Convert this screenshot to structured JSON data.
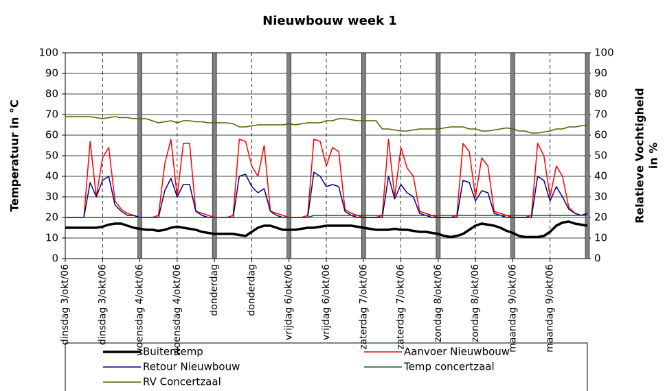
{
  "chart_data": {
    "type": "line",
    "title": "Nieuwbouw week 1",
    "ylabel": "Temperatuur in °C",
    "y2label": [
      "Relatieve Vochtigheid",
      "in %"
    ],
    "xlim": [
      0,
      168
    ],
    "ylim": [
      0,
      100
    ],
    "y2lim": [
      0,
      100
    ],
    "yticks": [
      0,
      10,
      20,
      30,
      40,
      50,
      60,
      70,
      80,
      90,
      100
    ],
    "y2ticks": [
      0,
      10,
      20,
      30,
      40,
      50,
      60,
      70,
      80,
      90,
      100
    ],
    "xticks": [
      {
        "value": 0,
        "label": "dinsdag 3/okt/06"
      },
      {
        "value": 12,
        "label": "dinsdag 3/okt/06"
      },
      {
        "value": 24,
        "label": "woensdag 4/okt/06"
      },
      {
        "value": 36,
        "label": "woensdag 4/okt/06"
      },
      {
        "value": 48,
        "label": "donderdag"
      },
      {
        "value": 60,
        "label": "donderdag"
      },
      {
        "value": 72,
        "label": "vrijdag 6/okt/06"
      },
      {
        "value": 84,
        "label": "vrijdag 6/okt/06"
      },
      {
        "value": 96,
        "label": "zaterdag 7/okt/06"
      },
      {
        "value": 108,
        "label": "zaterdag 7/okt/06"
      },
      {
        "value": 120,
        "label": "zondag 8/okt/06"
      },
      {
        "value": 132,
        "label": "zondag 8/okt/06"
      },
      {
        "value": 144,
        "label": "maandag 9/okt/06"
      },
      {
        "value": 156,
        "label": "maandag 9/okt/06"
      }
    ],
    "grid": true,
    "x": [
      0,
      2,
      4,
      6,
      8,
      10,
      12,
      14,
      16,
      18,
      20,
      22,
      24,
      26,
      28,
      30,
      32,
      34,
      36,
      38,
      40,
      42,
      44,
      46,
      48,
      50,
      52,
      54,
      56,
      58,
      60,
      62,
      64,
      66,
      68,
      70,
      72,
      74,
      76,
      78,
      80,
      82,
      84,
      86,
      88,
      90,
      92,
      94,
      96,
      98,
      100,
      102,
      104,
      106,
      108,
      110,
      112,
      114,
      116,
      118,
      120,
      122,
      124,
      126,
      128,
      130,
      132,
      134,
      136,
      138,
      140,
      142,
      144,
      146,
      148,
      150,
      152,
      154,
      156,
      158,
      160,
      162,
      164,
      166,
      168
    ],
    "series": [
      {
        "name": "Buitentemp",
        "color": "#000000",
        "width": 3.5,
        "values": [
          15,
          15,
          15,
          15,
          15,
          15,
          15.5,
          16.5,
          17,
          17,
          16,
          15,
          14.5,
          14,
          14,
          13.5,
          14,
          15,
          15.5,
          15,
          14.5,
          14,
          13,
          12.5,
          12,
          12,
          12,
          12,
          11.5,
          11,
          13,
          15,
          16,
          16,
          15,
          14,
          14,
          14,
          14.5,
          15,
          15,
          15.5,
          16,
          16,
          16,
          16,
          16,
          15.5,
          15,
          14.5,
          14,
          14,
          14,
          14.5,
          14,
          14,
          13.5,
          13,
          13,
          12.5,
          12,
          11,
          10.5,
          11,
          12,
          14,
          16,
          17,
          16.5,
          16,
          15,
          13.5,
          12.5,
          11,
          10.5,
          10.5,
          10.5,
          11,
          13,
          16,
          17.5,
          18,
          17,
          16.5,
          16
        ]
      },
      {
        "name": "Aanvoer Nieuwbouw",
        "color": "#ff0000",
        "width": 1.5,
        "values": [
          20,
          20,
          20,
          20,
          57,
          30,
          49,
          54,
          28,
          24,
          22,
          21,
          20,
          20,
          20,
          21,
          46,
          58,
          30,
          56,
          56,
          23,
          22,
          21,
          20,
          20,
          20,
          21,
          58,
          57,
          45,
          40,
          55,
          23,
          22,
          21,
          20,
          20,
          20,
          21,
          58,
          57,
          45,
          54,
          52,
          24,
          22,
          21,
          20,
          20,
          20,
          21,
          58,
          30,
          54,
          44,
          40,
          23,
          22,
          21,
          20,
          20,
          20,
          21,
          56,
          52,
          30,
          49,
          45,
          23,
          22,
          21,
          20,
          20,
          20,
          21,
          56,
          50,
          30,
          45,
          40,
          25,
          22,
          21,
          22
        ]
      },
      {
        "name": "Retour Nieuwbouw",
        "color": "#000080",
        "width": 1.5,
        "values": [
          20,
          20,
          20,
          20,
          37,
          30,
          38,
          40,
          26,
          23,
          21,
          21,
          20,
          20,
          20,
          20,
          33,
          39,
          30,
          36,
          36,
          23,
          21,
          20,
          20,
          20,
          20,
          20,
          40,
          41,
          35,
          32,
          34,
          23,
          21,
          20,
          20,
          20,
          20,
          20,
          42,
          40,
          35,
          36,
          35,
          23,
          21,
          20,
          20,
          20,
          20,
          20,
          40,
          29,
          36,
          32,
          30,
          22,
          21,
          20,
          20,
          20,
          20,
          20,
          38,
          37,
          28,
          33,
          32,
          22,
          21,
          20,
          20,
          20,
          20,
          20,
          40,
          38,
          28,
          35,
          30,
          24,
          22,
          21,
          22
        ]
      },
      {
        "name": "Temp concertzaal",
        "color": "#1e5a1e",
        "width": 1.5,
        "values": [
          20,
          20,
          20,
          20,
          20,
          20,
          20,
          20,
          20,
          20,
          20,
          20,
          20,
          20,
          20,
          20,
          20,
          20,
          20,
          20,
          20,
          20,
          20,
          20,
          20,
          20,
          20,
          20,
          20,
          20,
          20,
          20,
          20,
          20,
          20,
          20,
          20,
          20,
          20,
          20,
          21,
          21,
          21,
          21,
          21,
          21,
          21,
          21,
          21,
          21,
          21,
          21,
          21,
          21,
          21,
          21,
          21,
          21,
          21,
          21,
          21,
          21,
          21,
          21,
          21,
          21,
          21,
          21,
          21,
          21,
          21,
          21,
          21,
          21,
          21,
          21,
          21,
          21,
          21,
          21,
          21,
          21,
          21,
          21,
          21
        ]
      },
      {
        "name": "RV Concertzaal",
        "color": "#5a5a00",
        "width": 1.5,
        "axis": "y2",
        "values": [
          69,
          69,
          69,
          69,
          69,
          68.5,
          68,
          68.5,
          69,
          68.5,
          68.5,
          68,
          68,
          68,
          67,
          66,
          66.5,
          67,
          66,
          67,
          67,
          66.5,
          66.5,
          66,
          66,
          66,
          66,
          65.5,
          64,
          64,
          64.5,
          65,
          65,
          65,
          65,
          65,
          65.5,
          65,
          65.5,
          66,
          66,
          66,
          67,
          67,
          68,
          68,
          67.5,
          67,
          67,
          67,
          67,
          63,
          63,
          62.5,
          62,
          62,
          62.5,
          63,
          63,
          63,
          63,
          63.5,
          64,
          64,
          64,
          63,
          63,
          62,
          62,
          62.5,
          63,
          63.5,
          63,
          62,
          62,
          61,
          61,
          61.5,
          62,
          63,
          63,
          64,
          64,
          64.5,
          65
        ]
      }
    ]
  }
}
